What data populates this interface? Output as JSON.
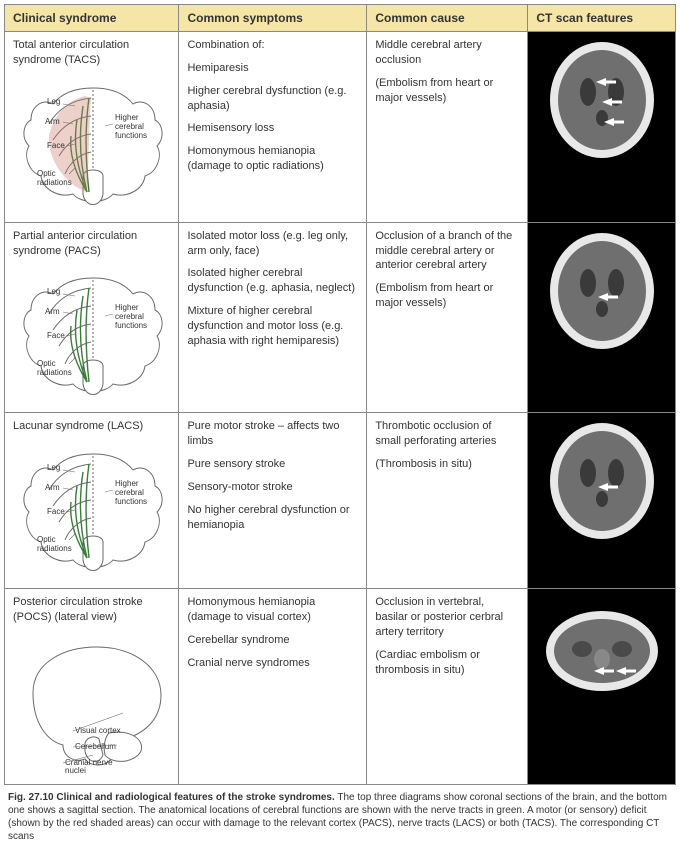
{
  "headers": {
    "syndrome": "Clinical syndrome",
    "symptoms": "Common symptoms",
    "cause": "Common cause",
    "ct": "CT scan features"
  },
  "rows": [
    {
      "title": "Total anterior circulation syndrome (TACS)",
      "diagram_labels": {
        "leg": "Leg",
        "arm": "Arm",
        "face": "Face",
        "optic": "Optic radiations",
        "higher": "Higher cerebral functions"
      },
      "symptoms": [
        "Combination of:",
        "Hemiparesis",
        "Higher cerebral dysfunction (e.g. aphasia)",
        "Hemisensory loss",
        "Homonymous hemianopia (damage to optic radiations)"
      ],
      "cause": [
        "Middle cerebral artery occlusion",
        "(Embolism from heart or major vessels)"
      ],
      "ct_arrows": 3
    },
    {
      "title": "Partial anterior circulation syndrome (PACS)",
      "diagram_labels": {
        "leg": "Leg",
        "arm": "Arm",
        "face": "Face",
        "optic": "Optic radiations",
        "higher": "Higher cerebral functions"
      },
      "symptoms": [
        "Isolated motor loss (e.g. leg only, arm only, face)",
        "Isolated higher cerebral dysfunction (e.g. aphasia, neglect)",
        "Mixture of higher cerebral dysfunction and motor loss (e.g. aphasia with right hemiparesis)"
      ],
      "cause": [
        "Occlusion of a branch of the middle cerebral artery or anterior cerebral artery",
        "(Embolism from heart or major vessels)"
      ],
      "ct_arrows": 1
    },
    {
      "title": "Lacunar syndrome (LACS)",
      "diagram_labels": {
        "leg": "Leg",
        "arm": "Arm",
        "face": "Face",
        "optic": "Optic radiations",
        "higher": "Higher cerebral functions"
      },
      "symptoms": [
        "Pure motor stroke – affects two limbs",
        "Pure sensory stroke",
        "Sensory-motor stroke",
        "No higher cerebral dysfunction or hemianopia"
      ],
      "cause": [
        "Thrombotic occlusion of small perforating arteries",
        "(Thrombosis in situ)"
      ],
      "ct_arrows": 1
    },
    {
      "title": "Posterior circulation stroke (POCS) (lateral view)",
      "diagram_labels": {
        "visual": "Visual cortex",
        "cerebellum": "Cerebellum",
        "cranial": "Cranial nerve nuclei"
      },
      "symptoms": [
        "Homonymous hemianopia (damage to visual cortex)",
        "Cerebellar syndrome",
        "Cranial nerve syndromes"
      ],
      "cause": [
        "Occlusion in vertebral, basilar or posterior cerbral artery territory",
        "(Cardiac embolism or thrombosis in situ)"
      ],
      "ct_arrows": 2,
      "lateral": true
    }
  ],
  "caption": {
    "bold": "Fig. 27.10  Clinical and radiological features of the stroke syndromes.",
    "rest": " The top three diagrams show coronal sections of the brain, and the bottom one shows a sagittal section. The anatomical locations of cerebral functions are shown with the nerve tracts in green. A motor (or sensory) deficit (shown by the red shaded areas) can occur with damage to the relevant cortex (PACS), nerve tracts (LACS) or both (TACS). The corresponding CT scans"
  },
  "colors": {
    "header_bg": "#f5e6a8",
    "border": "#888888",
    "text": "#333333",
    "diagram_outline": "#6a6a6a",
    "diagram_fill": "#ffffff",
    "tract_green": "#3a7d3a",
    "lesion_red": "#c97b6b",
    "ct_bg": "#000000",
    "ct_brain": "#6f6f6f",
    "ct_skull": "#e8e8e8",
    "arrow": "#ffffff"
  }
}
